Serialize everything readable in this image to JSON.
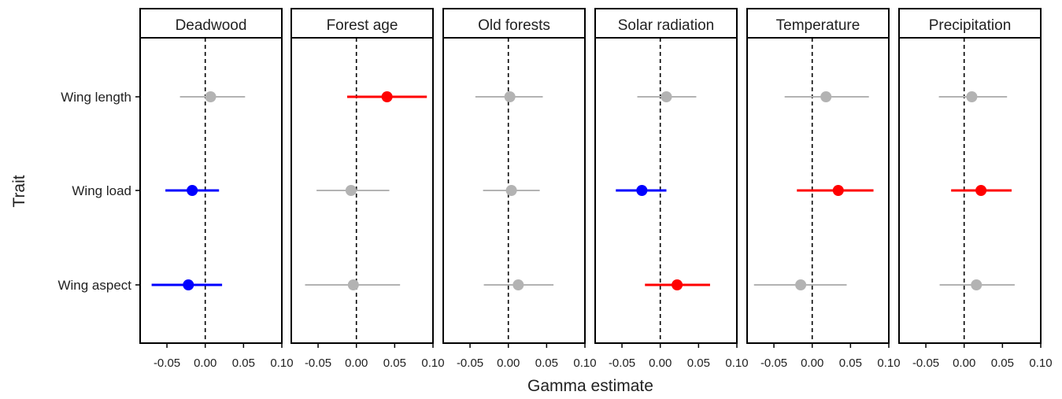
{
  "chart_data": {
    "type": "forest",
    "xlabel": "Gamma estimate",
    "ylabel": "Trait",
    "xlim": [
      -0.085,
      0.1
    ],
    "xticks": [
      -0.05,
      0.0,
      0.05,
      0.1
    ],
    "xtick_labels": [
      "-0.05",
      "0.00",
      "0.05",
      "0.10"
    ],
    "reference_line": 0,
    "traits": [
      "Wing length",
      "Wing load",
      "Wing aspect"
    ],
    "colors": {
      "positive": "#ff0000",
      "negative": "#0000ff",
      "nonsignificant": "#b3b3b3"
    },
    "panels": [
      {
        "name": "Deadwood",
        "estimates": [
          {
            "trait": "Wing length",
            "estimate": 0.007,
            "lower": -0.033,
            "upper": 0.052,
            "effect": "nonsignificant"
          },
          {
            "trait": "Wing load",
            "estimate": -0.017,
            "lower": -0.052,
            "upper": 0.018,
            "effect": "negative"
          },
          {
            "trait": "Wing aspect",
            "estimate": -0.022,
            "lower": -0.07,
            "upper": 0.022,
            "effect": "negative"
          }
        ]
      },
      {
        "name": "Forest age",
        "estimates": [
          {
            "trait": "Wing length",
            "estimate": 0.04,
            "lower": -0.012,
            "upper": 0.092,
            "effect": "positive"
          },
          {
            "trait": "Wing load",
            "estimate": -0.007,
            "lower": -0.052,
            "upper": 0.043,
            "effect": "nonsignificant"
          },
          {
            "trait": "Wing aspect",
            "estimate": -0.004,
            "lower": -0.067,
            "upper": 0.057,
            "effect": "nonsignificant"
          }
        ]
      },
      {
        "name": "Old forests",
        "estimates": [
          {
            "trait": "Wing length",
            "estimate": 0.002,
            "lower": -0.043,
            "upper": 0.045,
            "effect": "nonsignificant"
          },
          {
            "trait": "Wing load",
            "estimate": 0.004,
            "lower": -0.033,
            "upper": 0.041,
            "effect": "nonsignificant"
          },
          {
            "trait": "Wing aspect",
            "estimate": 0.013,
            "lower": -0.032,
            "upper": 0.059,
            "effect": "nonsignificant"
          }
        ]
      },
      {
        "name": "Solar radiation",
        "estimates": [
          {
            "trait": "Wing length",
            "estimate": 0.008,
            "lower": -0.03,
            "upper": 0.047,
            "effect": "nonsignificant"
          },
          {
            "trait": "Wing load",
            "estimate": -0.024,
            "lower": -0.058,
            "upper": 0.008,
            "effect": "negative"
          },
          {
            "trait": "Wing aspect",
            "estimate": 0.022,
            "lower": -0.02,
            "upper": 0.065,
            "effect": "positive"
          }
        ]
      },
      {
        "name": "Temperature",
        "estimates": [
          {
            "trait": "Wing length",
            "estimate": 0.018,
            "lower": -0.036,
            "upper": 0.074,
            "effect": "nonsignificant"
          },
          {
            "trait": "Wing load",
            "estimate": 0.034,
            "lower": -0.02,
            "upper": 0.08,
            "effect": "positive"
          },
          {
            "trait": "Wing aspect",
            "estimate": -0.015,
            "lower": -0.076,
            "upper": 0.045,
            "effect": "nonsignificant"
          }
        ]
      },
      {
        "name": "Precipitation",
        "estimates": [
          {
            "trait": "Wing length",
            "estimate": 0.01,
            "lower": -0.033,
            "upper": 0.056,
            "effect": "nonsignificant"
          },
          {
            "trait": "Wing load",
            "estimate": 0.022,
            "lower": -0.017,
            "upper": 0.062,
            "effect": "positive"
          },
          {
            "trait": "Wing aspect",
            "estimate": 0.016,
            "lower": -0.032,
            "upper": 0.066,
            "effect": "nonsignificant"
          }
        ]
      }
    ]
  }
}
